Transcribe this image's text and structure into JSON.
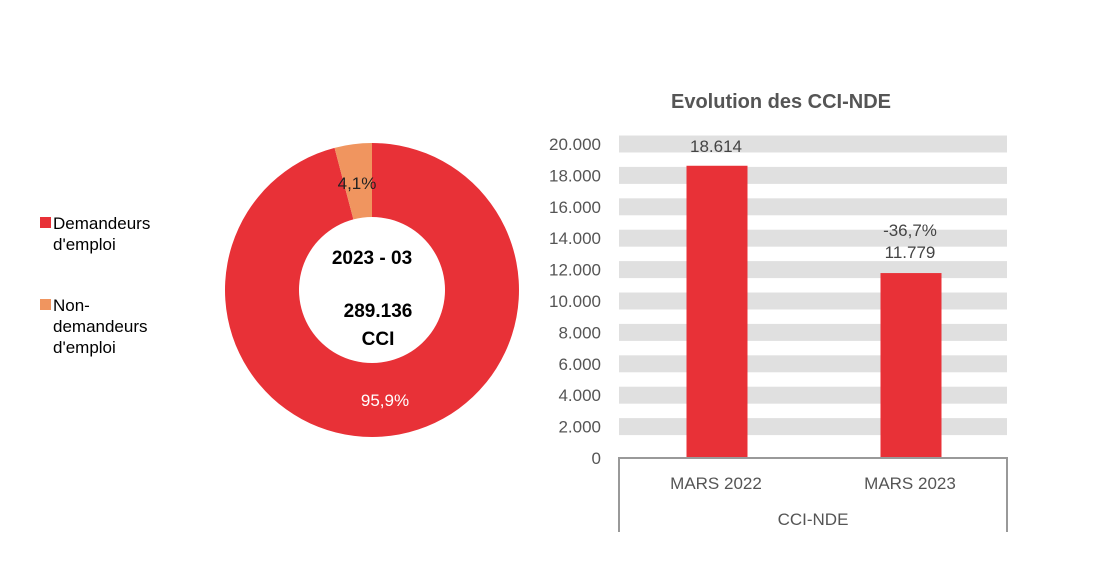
{
  "chart_data": [
    {
      "type": "pie",
      "variant": "donut",
      "categories": [
        "Demandeurs d'emploi",
        "Non-demandeurs d'emploi"
      ],
      "values": [
        95.9,
        4.1
      ],
      "data_labels": [
        "95,9%",
        "4,1%"
      ],
      "colors": [
        "#E83137",
        "#F0955F"
      ],
      "center_text": {
        "period": "2023 - 03",
        "total": "289.136",
        "unit": "CCI"
      },
      "legend": "left"
    },
    {
      "type": "bar",
      "title": "Evolution des CCI-NDE",
      "categories": [
        "MARS 2022",
        "MARS 2023"
      ],
      "group_label": "CCI-NDE",
      "values": [
        18614,
        11779
      ],
      "data_labels": [
        "18.614",
        "11.779"
      ],
      "change_label": "-36,7%",
      "ylim": [
        0,
        20000
      ],
      "yticks": [
        "0",
        "2.000",
        "4.000",
        "6.000",
        "8.000",
        "10.000",
        "12.000",
        "14.000",
        "16.000",
        "18.000",
        "20.000"
      ],
      "grid": "banded",
      "bar_color": "#E83137",
      "grid_color": "#E0E0E0"
    }
  ]
}
